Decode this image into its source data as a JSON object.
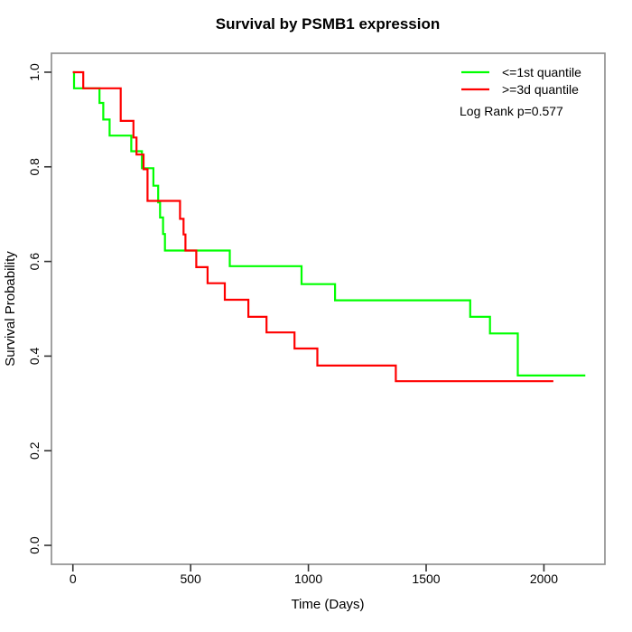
{
  "chart_data": {
    "type": "line",
    "subtype": "kaplan-meier-step",
    "title": "Survival by PSMB1 expression",
    "xlabel": "Time (Days)",
    "ylabel": "Survival Probability",
    "x_ticks": [
      0,
      500,
      1000,
      1500,
      2000
    ],
    "y_ticks": [
      0.0,
      0.2,
      0.4,
      0.6,
      0.8,
      1.0
    ],
    "xlim": [
      -91,
      2259
    ],
    "ylim": [
      -0.04,
      1.04
    ],
    "grid": false,
    "legend_position": "top-right",
    "annotation": "Log Rank p=0.577",
    "series": [
      {
        "name": "<=1st quantile",
        "color": "#00ff00",
        "end_time": 2176,
        "points": [
          [
            0,
            1.0
          ],
          [
            5,
            0.966
          ],
          [
            113,
            0.935
          ],
          [
            129,
            0.9
          ],
          [
            156,
            0.866
          ],
          [
            248,
            0.833
          ],
          [
            293,
            0.797
          ],
          [
            342,
            0.76
          ],
          [
            362,
            0.725
          ],
          [
            370,
            0.693
          ],
          [
            383,
            0.658
          ],
          [
            391,
            0.623
          ],
          [
            666,
            0.59
          ],
          [
            971,
            0.552
          ],
          [
            1113,
            0.518
          ],
          [
            1687,
            0.483
          ],
          [
            1771,
            0.448
          ],
          [
            1889,
            0.359
          ]
        ]
      },
      {
        "name": ">=3d quantile",
        "color": "#ff0000",
        "end_time": 2040,
        "points": [
          [
            0,
            1.0
          ],
          [
            44,
            0.966
          ],
          [
            203,
            0.897
          ],
          [
            257,
            0.862
          ],
          [
            270,
            0.826
          ],
          [
            300,
            0.795
          ],
          [
            317,
            0.728
          ],
          [
            455,
            0.69
          ],
          [
            470,
            0.657
          ],
          [
            478,
            0.623
          ],
          [
            524,
            0.588
          ],
          [
            572,
            0.554
          ],
          [
            645,
            0.519
          ],
          [
            745,
            0.483
          ],
          [
            822,
            0.45
          ],
          [
            941,
            0.416
          ],
          [
            1038,
            0.38
          ],
          [
            1371,
            0.347
          ]
        ]
      }
    ]
  },
  "colors": {
    "box": "#919191",
    "tick": "#333333",
    "text": "#000000",
    "background": "#ffffff"
  }
}
